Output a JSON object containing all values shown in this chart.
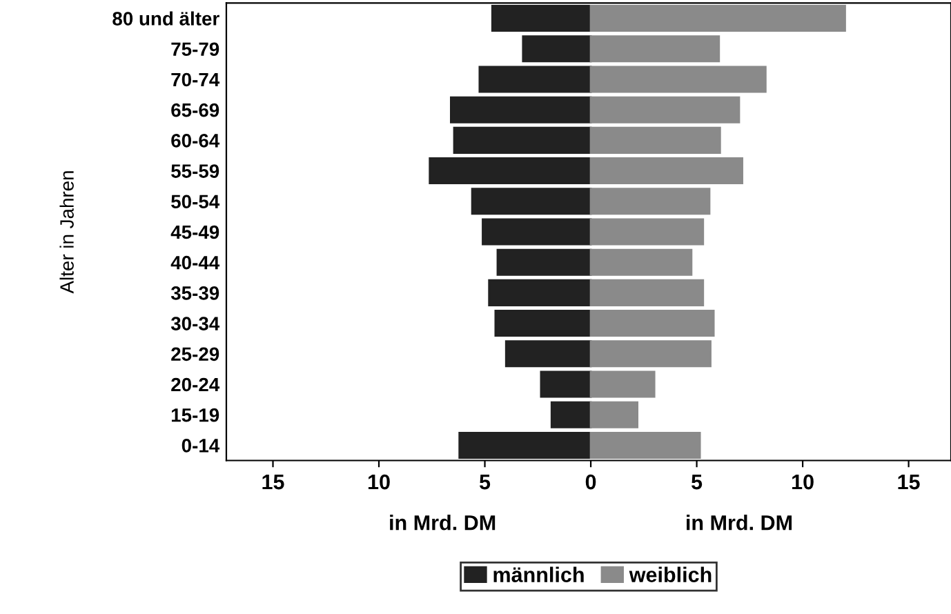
{
  "chart_data": {
    "type": "bar",
    "orientation": "horizontal",
    "ylabel": "Alter in Jahren",
    "xlabel": "in Mrd. DM",
    "annotations": [
      "in Mrd. DM"
    ],
    "categories": [
      "80 und älter",
      "75-79",
      "70-74",
      "65-69",
      "60-64",
      "55-59",
      "50-54",
      "45-49",
      "40-44",
      "35-39",
      "30-34",
      "25-29",
      "20-24",
      "15-19",
      "0-14"
    ],
    "series": [
      {
        "name": "männlich",
        "color": "#222222",
        "values": [
          -4.65,
          -3.2,
          -5.25,
          -6.6,
          -6.45,
          -7.6,
          -5.6,
          -5.1,
          -4.4,
          -4.8,
          -4.5,
          -4.0,
          -2.35,
          -1.85,
          -6.2
        ]
      },
      {
        "name": "weiblich",
        "color": "#8a8a8a",
        "values": [
          12.0,
          6.05,
          8.25,
          7.0,
          6.1,
          7.15,
          5.6,
          5.3,
          4.75,
          5.3,
          5.8,
          5.65,
          3.0,
          2.2,
          5.15
        ]
      }
    ],
    "xlim": [
      -17.2,
      17
    ],
    "xticks": [
      {
        "value": -15,
        "label": "15"
      },
      {
        "value": -10,
        "label": "10"
      },
      {
        "value": -5,
        "label": "5"
      },
      0,
      5,
      10,
      15
    ],
    "stacked": true,
    "grid": false,
    "legend": "bottom"
  }
}
